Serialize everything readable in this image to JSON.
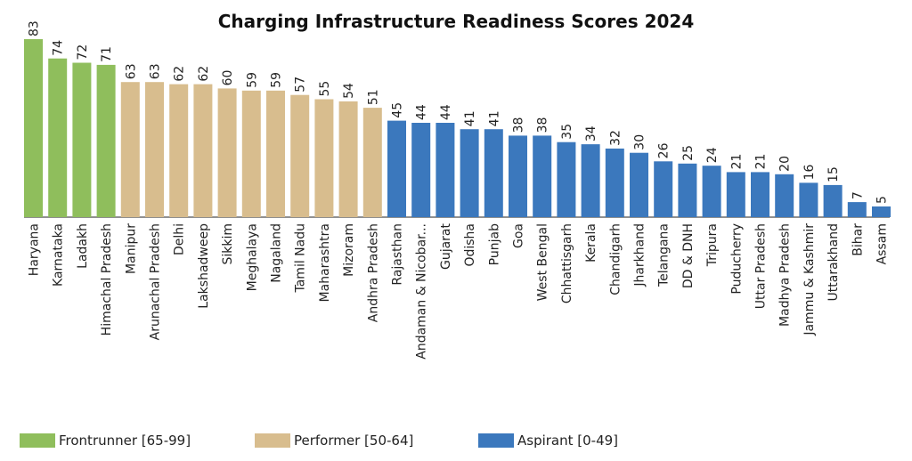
{
  "chart_data": {
    "type": "bar",
    "title": "Charging Infrastructure Readiness Scores 2024",
    "xlabel": "",
    "ylabel": "",
    "ylim": [
      0,
      83
    ],
    "grid": false,
    "legend_position": "bottom",
    "categories": [
      "Haryana",
      "Karnataka",
      "Ladakh",
      "Himachal Pradesh",
      "Manipur",
      "Arunachal Pradesh",
      "Delhi",
      "Lakshadweep",
      "Sikkim",
      "Meghalaya",
      "Nagaland",
      "Tamil Nadu",
      "Maharashtra",
      "Mizoram",
      "Andhra Pradesh",
      "Rajasthan",
      "Andaman & Nicobar...",
      "Gujarat",
      "Odisha",
      "Punjab",
      "Goa",
      "West Bengal",
      "Chhattisgarh",
      "Kerala",
      "Chandigarh",
      "Jharkhand",
      "Telangana",
      "DD & DNH",
      "Tripura",
      "Puducherry",
      "Uttar Pradesh",
      "Madhya Pradesh",
      "Jammu & Kashmir",
      "Uttarakhand",
      "Bihar",
      "Assam"
    ],
    "values": [
      83,
      74,
      72,
      71,
      63,
      63,
      62,
      62,
      60,
      59,
      59,
      57,
      55,
      54,
      51,
      45,
      44,
      44,
      41,
      41,
      38,
      38,
      35,
      34,
      32,
      30,
      26,
      25,
      24,
      21,
      21,
      20,
      16,
      15,
      7,
      5
    ],
    "groups": [
      {
        "name": "Frontrunner [65-99]",
        "min": 65,
        "max": 99,
        "color": "#8fbe5c"
      },
      {
        "name": "Performer [50-64]",
        "min": 50,
        "max": 64,
        "color": "#d8bd8e"
      },
      {
        "name": "Aspirant [0-49]",
        "min": 0,
        "max": 49,
        "color": "#3b78bd"
      }
    ]
  }
}
